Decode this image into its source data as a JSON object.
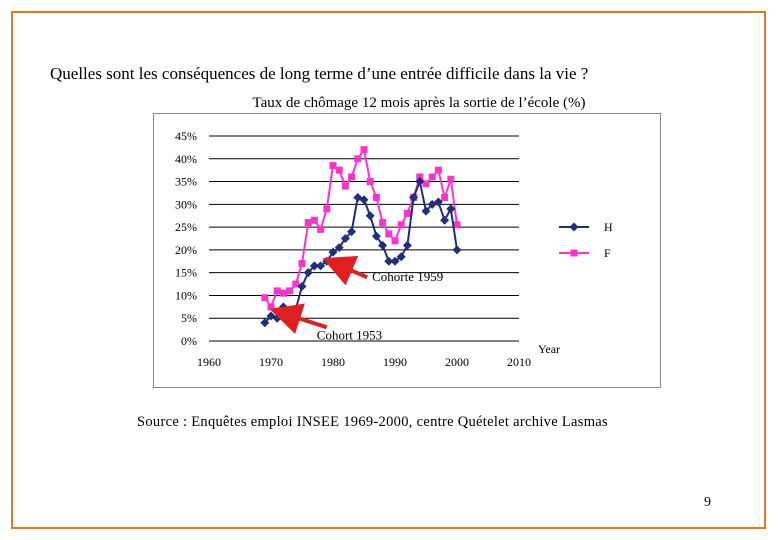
{
  "slide": {
    "title": "Quelles sont les conséquences de long terme d’une entrée difficile dans la vie ?",
    "source": "Source : Enquêtes emploi INSEE 1969-2000, centre Quételet archive Lasmas",
    "page_number": "9"
  },
  "colors": {
    "frame": "#e87722",
    "series_h": "#1f2f7a",
    "series_f": "#ff33cc",
    "arrow": "#e02020",
    "grid": "#000000"
  },
  "chart_data": {
    "type": "line",
    "title": "Taux de chômage 12 mois après la sortie de l’école  (%)",
    "xlabel": "Year",
    "ylabel": "",
    "xlim": [
      1960,
      2010
    ],
    "ylim": [
      0,
      0.45
    ],
    "x_ticks": [
      1960,
      1970,
      1980,
      1990,
      2000,
      2010
    ],
    "x_tick_labels": [
      "1960",
      "1970",
      "1980",
      "1990",
      "2000",
      "2010"
    ],
    "y_ticks": [
      0,
      0.05,
      0.1,
      0.15,
      0.2,
      0.25,
      0.3,
      0.35,
      0.4,
      0.45
    ],
    "y_tick_labels": [
      "0%",
      "5%",
      "10%",
      "15%",
      "20%",
      "25%",
      "30%",
      "35%",
      "40%",
      "45%"
    ],
    "grid": true,
    "legend_position": "right",
    "series": [
      {
        "name": "H",
        "marker": "diamond",
        "x": [
          1969,
          1970,
          1971,
          1972,
          1973,
          1974,
          1975,
          1976,
          1977,
          1978,
          1979,
          1980,
          1981,
          1982,
          1983,
          1984,
          1985,
          1986,
          1987,
          1988,
          1989,
          1990,
          1991,
          1992,
          1993,
          1994,
          1995,
          1996,
          1997,
          1998,
          1999,
          2000
        ],
        "values": [
          0.04,
          0.055,
          0.05,
          0.075,
          0.06,
          0.07,
          0.12,
          0.15,
          0.165,
          0.165,
          0.175,
          0.195,
          0.205,
          0.225,
          0.24,
          0.315,
          0.31,
          0.275,
          0.23,
          0.21,
          0.175,
          0.175,
          0.185,
          0.21,
          0.315,
          0.35,
          0.285,
          0.3,
          0.305,
          0.265,
          0.29,
          0.2
        ]
      },
      {
        "name": "F",
        "marker": "square",
        "x": [
          1969,
          1970,
          1971,
          1972,
          1973,
          1974,
          1975,
          1976,
          1977,
          1978,
          1979,
          1980,
          1981,
          1982,
          1983,
          1984,
          1985,
          1986,
          1987,
          1988,
          1989,
          1990,
          1991,
          1992,
          1993,
          1994,
          1995,
          1996,
          1997,
          1998,
          1999,
          2000
        ],
        "values": [
          0.095,
          0.075,
          0.11,
          0.105,
          0.11,
          0.125,
          0.17,
          0.26,
          0.265,
          0.245,
          0.29,
          0.385,
          0.375,
          0.34,
          0.36,
          0.4,
          0.42,
          0.35,
          0.315,
          0.26,
          0.235,
          0.22,
          0.255,
          0.28,
          0.315,
          0.36,
          0.345,
          0.36,
          0.375,
          0.315,
          0.355,
          0.255
        ]
      }
    ],
    "annotations": [
      {
        "label": "Cohorte 1959",
        "from": [
          1985.5,
          0.14
        ],
        "to": [
          1979.5,
          0.175
        ]
      },
      {
        "label": "Cohort 1953",
        "from": [
          1979,
          0.03
        ],
        "to": [
          1971,
          0.065
        ]
      }
    ]
  }
}
